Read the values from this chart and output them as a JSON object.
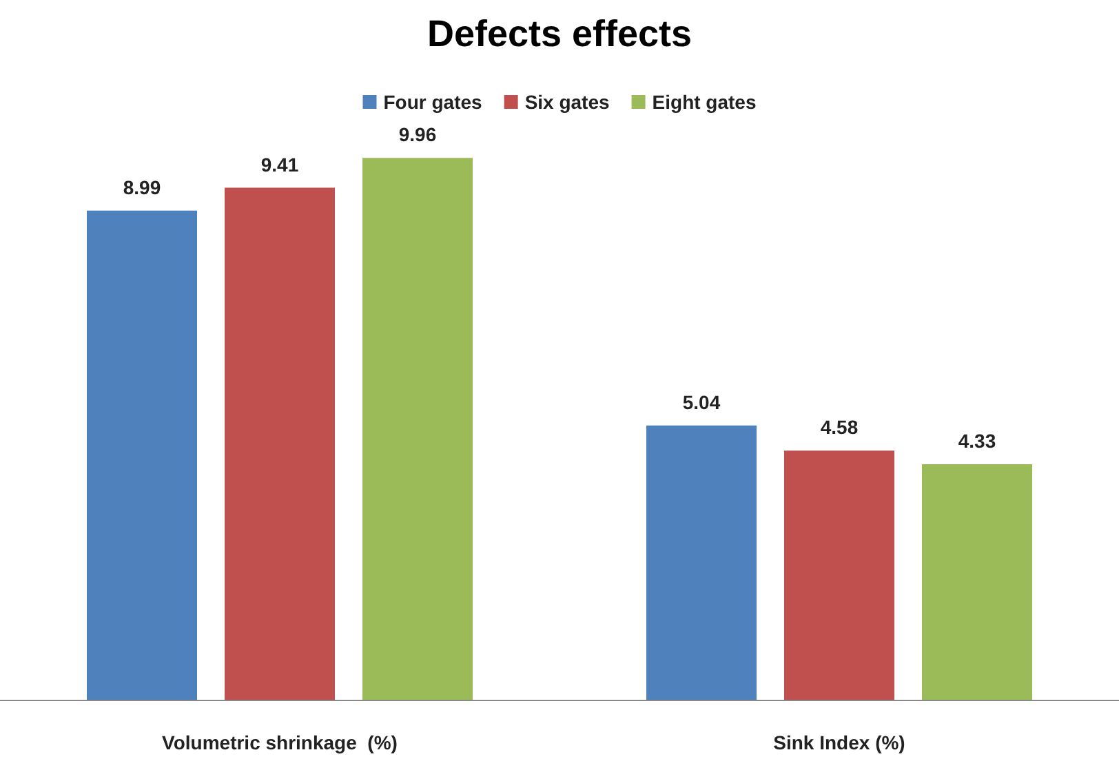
{
  "chart_data": {
    "type": "bar",
    "title": "Defects effects",
    "categories": [
      "Volumetric shrinkage  (%)",
      "Sink Index (%)"
    ],
    "series": [
      {
        "name": "Four gates",
        "color": "#4f81bd",
        "values": [
          8.99,
          5.04
        ]
      },
      {
        "name": "Six gates",
        "color": "#c0504d",
        "values": [
          9.41,
          4.58
        ]
      },
      {
        "name": "Eight gates",
        "color": "#9bbb59",
        "values": [
          9.96,
          4.33
        ]
      }
    ],
    "data_labels": true,
    "legend": "top"
  }
}
